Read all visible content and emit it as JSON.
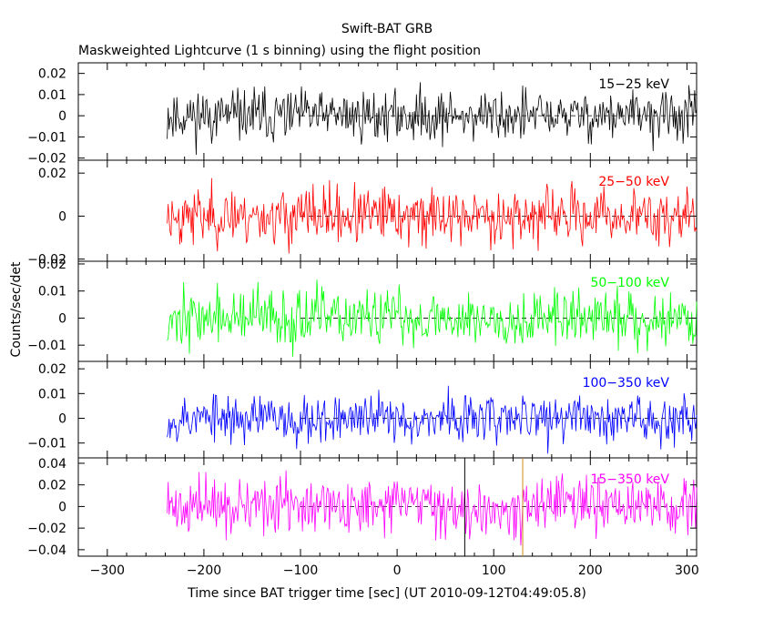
{
  "chart_data": {
    "type": "line",
    "title": "Swift-BAT GRB",
    "subtitle": "Maskweighted Lightcurve (1 s binning) using the flight position",
    "xlabel": "Time since BAT trigger time [sec] (UT 2010-09-12T04:49:05.8)",
    "ylabel": "Counts/sec/det",
    "xlim": [
      -330,
      310
    ],
    "x_ticks": [
      -300,
      -200,
      -100,
      0,
      100,
      200,
      300
    ],
    "x_tick_labels": [
      "−300",
      "−200",
      "−100",
      "0",
      "100",
      "200",
      "300"
    ],
    "data_start": -238,
    "data_end": 310,
    "dashed_zero_start": -100,
    "vertical_markers": [
      {
        "x": 70,
        "color": "#000000"
      },
      {
        "x": 130,
        "color": "#d08a1e"
      }
    ],
    "panels": [
      {
        "band": "15−25 keV",
        "color": "#000000",
        "ylim": [
          -0.021,
          0.025
        ],
        "y_ticks": [
          -0.02,
          -0.01,
          0,
          0.01,
          0.02
        ],
        "y_tick_labels": [
          "−0.02",
          "−0.01",
          "0",
          "0.01",
          "0.02"
        ],
        "noise_sigma": 0.006,
        "seed": 11
      },
      {
        "band": "25−50 keV",
        "color": "#ff0000",
        "ylim": [
          -0.021,
          0.026
        ],
        "y_ticks": [
          -0.02,
          0,
          0.02
        ],
        "y_tick_labels": [
          "−0.02",
          "0",
          "0.02"
        ],
        "noise_sigma": 0.0065,
        "seed": 23
      },
      {
        "band": "50−100 keV",
        "color": "#00ff00",
        "ylim": [
          -0.016,
          0.021
        ],
        "y_ticks": [
          -0.01,
          0,
          0.01,
          0.02
        ],
        "y_tick_labels": [
          "−0.01",
          "0",
          "0.01",
          "0.02"
        ],
        "noise_sigma": 0.0052,
        "seed": 37
      },
      {
        "band": "100−350 keV",
        "color": "#0000ff",
        "ylim": [
          -0.016,
          0.023
        ],
        "y_ticks": [
          -0.01,
          0,
          0.01,
          0.02
        ],
        "y_tick_labels": [
          "−0.01",
          "0",
          "0.01",
          "0.02"
        ],
        "noise_sigma": 0.0048,
        "seed": 53
      },
      {
        "band": "15−350 keV",
        "color": "#ff00ff",
        "ylim": [
          -0.046,
          0.045
        ],
        "y_ticks": [
          -0.04,
          -0.02,
          0,
          0.02,
          0.04
        ],
        "y_tick_labels": [
          "−0.04",
          "−0.02",
          "0",
          "0.02",
          "0.04"
        ],
        "noise_sigma": 0.0125,
        "seed": 71
      }
    ]
  }
}
